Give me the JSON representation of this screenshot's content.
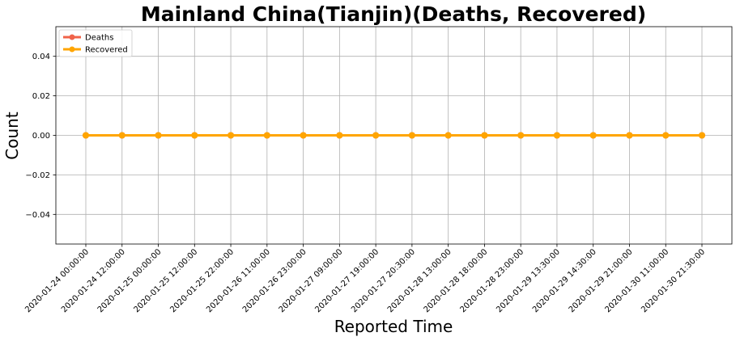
{
  "chart_data": {
    "type": "line",
    "title": "Mainland China(Tianjin)(Deaths, Recovered)",
    "xlabel": "Reported Time",
    "ylabel": "Count",
    "categories": [
      "2020-01-24 00:00:00",
      "2020-01-24 12:00:00",
      "2020-01-25 00:00:00",
      "2020-01-25 12:00:00",
      "2020-01-25 22:00:00",
      "2020-01-26 11:00:00",
      "2020-01-26 23:00:00",
      "2020-01-27 09:00:00",
      "2020-01-27 19:00:00",
      "2020-01-27 20:30:00",
      "2020-01-28 13:00:00",
      "2020-01-28 18:00:00",
      "2020-01-28 23:00:00",
      "2020-01-29 13:30:00",
      "2020-01-29 14:30:00",
      "2020-01-29 21:00:00",
      "2020-01-30 11:00:00",
      "2020-01-30 21:30:00"
    ],
    "series": [
      {
        "name": "Deaths",
        "color": "#f0634a",
        "values": [
          0,
          0,
          0,
          0,
          0,
          0,
          0,
          0,
          0,
          0,
          0,
          0,
          0,
          0,
          0,
          0,
          0,
          0
        ]
      },
      {
        "name": "Recovered",
        "color": "#ffa500",
        "values": [
          0,
          0,
          0,
          0,
          0,
          0,
          0,
          0,
          0,
          0,
          0,
          0,
          0,
          0,
          0,
          0,
          0,
          0
        ]
      }
    ],
    "ylim": [
      -0.055,
      0.055
    ],
    "yticks": [
      -0.04,
      -0.02,
      0.0,
      0.02,
      0.04
    ],
    "ytick_labels": [
      "−0.04",
      "−0.02",
      "0.00",
      "0.02",
      "0.04"
    ],
    "grid": true,
    "legend_position": "top-left"
  }
}
